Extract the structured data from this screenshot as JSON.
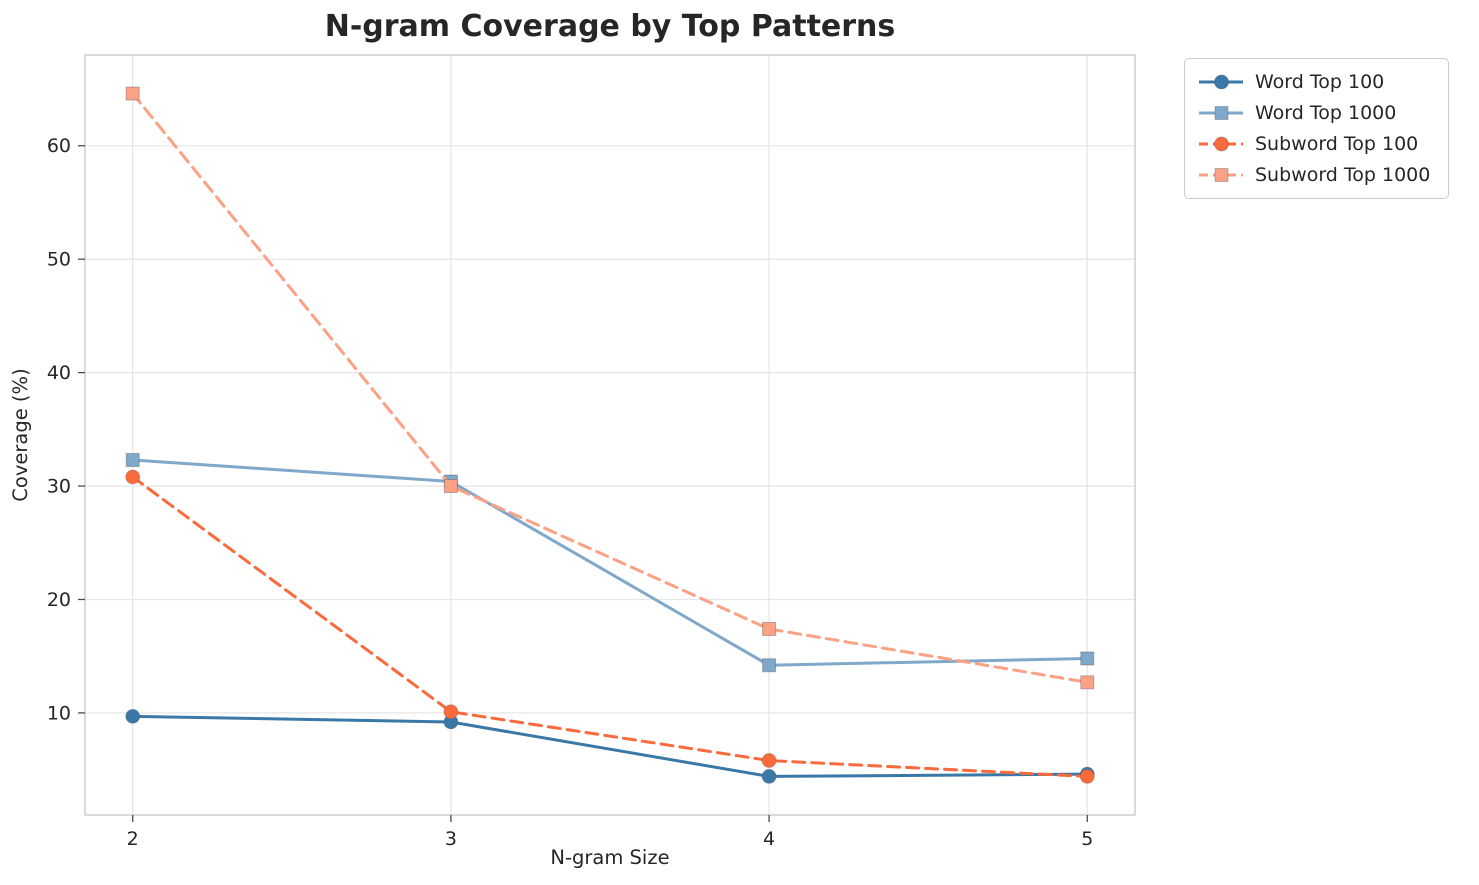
{
  "chart_data": {
    "type": "line",
    "title": "N-gram Coverage by Top Patterns",
    "xlabel": "N-gram Size",
    "ylabel": "Coverage (%)",
    "x": [
      2,
      3,
      4,
      5
    ],
    "x_tick_labels": [
      "2",
      "3",
      "4",
      "5"
    ],
    "y_ticks": [
      10,
      20,
      30,
      40,
      50,
      60
    ],
    "xlim": [
      1.85,
      5.15
    ],
    "ylim": [
      1,
      68
    ],
    "grid": true,
    "legend_position": "outside-top-right",
    "series": [
      {
        "name": "Word Top 100",
        "values": [
          9.7,
          9.2,
          4.4,
          4.6
        ],
        "color": "#3a78a8",
        "dash": "solid",
        "marker": "circle"
      },
      {
        "name": "Word Top 1000",
        "values": [
          32.3,
          30.4,
          14.2,
          14.8
        ],
        "color": "#7fa8cb",
        "dash": "solid",
        "marker": "square"
      },
      {
        "name": "Subword Top 100",
        "values": [
          30.8,
          10.1,
          5.8,
          4.4
        ],
        "color": "#fa6a3c",
        "dash": "dashed",
        "marker": "circle"
      },
      {
        "name": "Subword Top 1000",
        "values": [
          64.6,
          30.0,
          17.4,
          12.7
        ],
        "color": "#fba184",
        "dash": "dashed",
        "marker": "square"
      }
    ]
  }
}
